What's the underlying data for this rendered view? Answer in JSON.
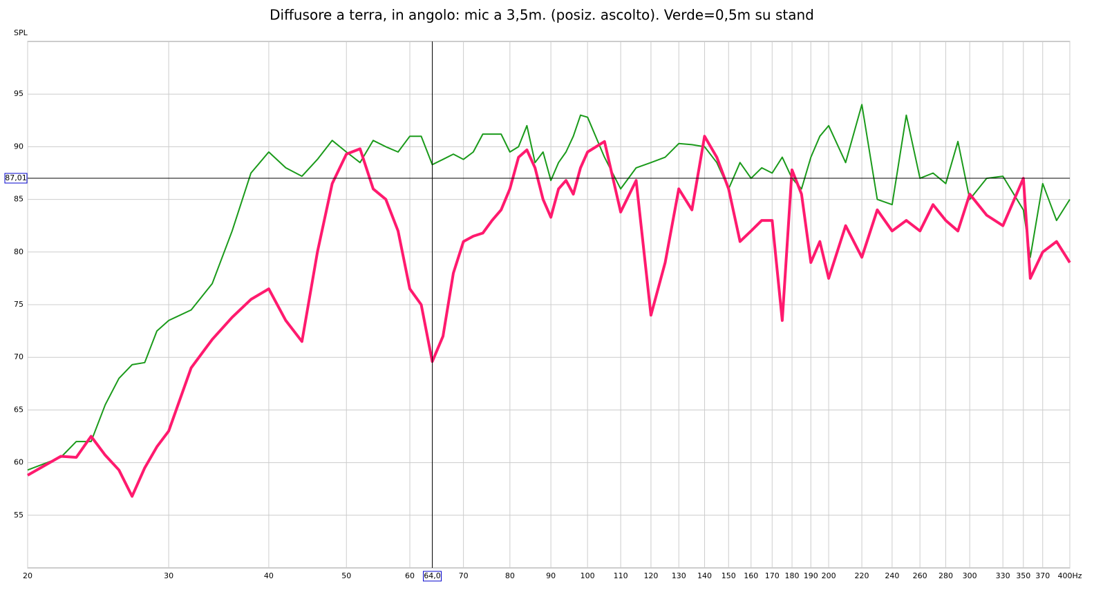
{
  "chart_data": {
    "type": "line",
    "title": "Diffusore a terra, in angolo: mic a 3,5m. (posiz. ascolto). Verde=0,5m su stand",
    "y_label": "SPL",
    "x_scale": "log",
    "grid": true,
    "x": [
      20,
      22,
      23,
      24,
      25,
      26,
      27,
      28,
      29,
      30,
      32,
      34,
      36,
      38,
      40,
      42,
      44,
      46,
      48,
      50,
      52,
      54,
      56,
      58,
      60,
      62,
      64,
      66,
      68,
      70,
      72,
      74,
      76,
      78,
      80,
      82,
      84,
      86,
      88,
      90,
      92,
      94,
      96,
      98,
      100,
      105,
      110,
      115,
      120,
      125,
      130,
      135,
      140,
      145,
      150,
      155,
      160,
      165,
      170,
      175,
      180,
      185,
      190,
      195,
      200,
      210,
      220,
      230,
      240,
      250,
      260,
      270,
      280,
      290,
      300,
      315,
      330,
      350,
      357,
      370,
      385,
      400
    ],
    "series": [
      {
        "name": "Verde",
        "color": "#1a9a1a",
        "values": [
          59.3,
          60.5,
          62,
          62,
          65.5,
          68,
          69.3,
          69.5,
          72.5,
          73.5,
          74.5,
          77,
          82,
          87.5,
          89.5,
          88,
          87.2,
          88.8,
          90.6,
          89.5,
          88.5,
          90.6,
          90,
          89.5,
          91,
          91,
          88.3,
          88.8,
          89.3,
          88.8,
          89.5,
          91.2,
          91.2,
          91.2,
          89.5,
          90,
          92,
          88.5,
          89.5,
          86.8,
          88.5,
          89.5,
          91,
          93,
          92.8,
          89,
          86,
          88,
          88.5,
          89,
          90.3,
          90.2,
          90,
          88.5,
          86,
          88.5,
          87,
          88,
          87.5,
          89,
          87,
          86,
          89,
          91,
          92,
          88.5,
          94,
          85,
          84.5,
          93,
          87,
          87.5,
          86.5,
          90.5,
          85,
          87,
          87.2,
          84,
          79.5,
          86.5,
          83,
          85
        ]
      },
      {
        "name": "Rosa",
        "color": "#ff1a6e",
        "values": [
          58.8,
          60.6,
          60.5,
          62.5,
          60.7,
          59.3,
          56.8,
          59.5,
          61.5,
          63,
          69,
          71.7,
          73.8,
          75.5,
          76.5,
          73.5,
          71.5,
          80,
          86.5,
          89.3,
          89.8,
          86,
          85,
          82,
          76.5,
          75,
          69.6,
          72,
          78,
          81,
          81.5,
          81.8,
          83,
          84,
          86,
          89,
          89.7,
          88,
          85,
          83.3,
          86,
          86.8,
          85.5,
          88,
          89.5,
          90.5,
          83.8,
          86.8,
          74,
          79,
          86,
          84,
          91,
          89,
          86,
          81,
          82,
          83,
          83,
          73.5,
          87.8,
          85.5,
          79,
          81,
          77.5,
          82.5,
          79.5,
          84,
          82,
          83,
          82,
          84.5,
          83,
          82,
          85.5,
          83.5,
          82.5,
          87,
          77.5,
          80,
          81,
          79
        ]
      }
    ],
    "xlim": [
      20,
      400
    ],
    "ylim": [
      50,
      100
    ],
    "xticks": [
      20,
      30,
      40,
      50,
      60,
      70,
      80,
      90,
      100,
      110,
      120,
      130,
      140,
      150,
      160,
      170,
      180,
      190,
      200,
      220,
      240,
      260,
      280,
      300,
      330,
      350,
      370,
      {
        "value": 400,
        "label": "400Hz"
      }
    ],
    "yticks": [
      55,
      60,
      65,
      70,
      75,
      80,
      85,
      90,
      95
    ],
    "cursor": {
      "x": {
        "value": 64.0,
        "label": "64,0"
      },
      "y": {
        "value": 87.01,
        "label": "87,01"
      }
    }
  }
}
